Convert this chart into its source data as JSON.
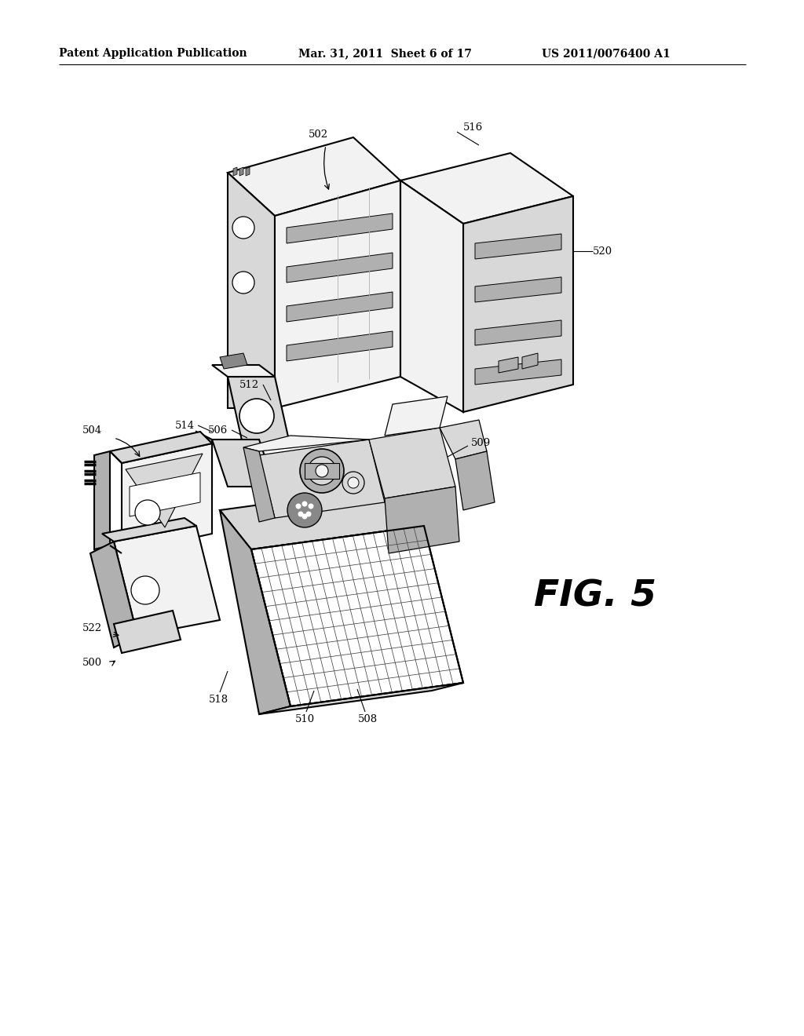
{
  "background_color": "#ffffff",
  "header_left": "Patent Application Publication",
  "header_center": "Mar. 31, 2011  Sheet 6 of 17",
  "header_right": "US 2011/0076400 A1",
  "fig_label": "FIG. 5",
  "line_color": "#000000",
  "text_color": "#000000",
  "lw_outer": 1.5,
  "lw_inner": 0.9,
  "lw_thin": 0.6,
  "gray_light": "#f2f2f2",
  "gray_mid": "#d8d8d8",
  "gray_dark": "#b0b0b0",
  "gray_darker": "#888888"
}
